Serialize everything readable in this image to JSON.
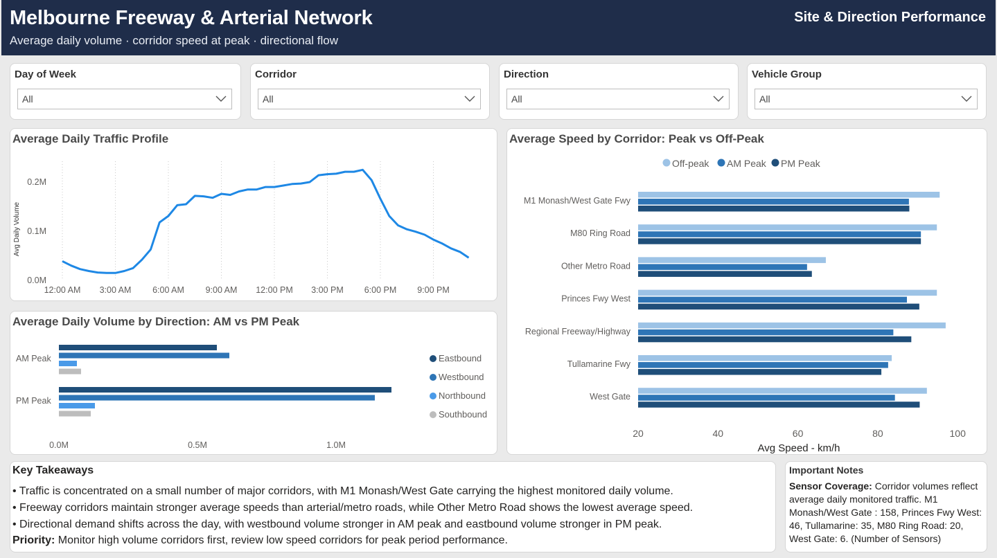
{
  "header": {
    "title": "Melbourne Freeway & Arterial Network",
    "subtitle": "Average daily volume · corridor speed at peak · directional flow",
    "page_name": "Site & Direction Performance"
  },
  "slicers": [
    {
      "label": "Day of Week",
      "value": "All"
    },
    {
      "label": "Corridor",
      "value": "All"
    },
    {
      "label": "Direction",
      "value": "All"
    },
    {
      "label": "Vehicle Group",
      "value": "All"
    }
  ],
  "colors": {
    "header_bg": "#1f2d4a",
    "line": "#1e88e5",
    "eastbound": "#1f4e79",
    "westbound": "#2e75b6",
    "northbound": "#4a9ae8",
    "southbound": "#bdbdbd",
    "offpeak": "#9dc3e6",
    "ampeak": "#2e75b6",
    "pmpeak": "#1f4e79"
  },
  "chart_data": [
    {
      "type": "line",
      "title": "Average Daily Traffic Profile",
      "ylabel": "Avg Daily Volume",
      "xlabel": "",
      "x_ticks": [
        "12:00 AM",
        "3:00 AM",
        "6:00 AM",
        "9:00 AM",
        "12:00 PM",
        "3:00 PM",
        "6:00 PM",
        "9:00 PM"
      ],
      "y_ticks": [
        "0.0M",
        "0.1M",
        "0.2M"
      ],
      "ylim": [
        0,
        0.24
      ],
      "x_hours": [
        0,
        0.5,
        1,
        1.5,
        2,
        2.5,
        3,
        3.5,
        4,
        4.5,
        5,
        5.5,
        6,
        6.5,
        7,
        7.5,
        8,
        8.5,
        9,
        9.5,
        10,
        10.5,
        11,
        11.5,
        12,
        12.5,
        13,
        13.5,
        14,
        14.5,
        15,
        15.5,
        16,
        16.5,
        17,
        17.5,
        18,
        18.5,
        19,
        19.5,
        20,
        20.5,
        21,
        21.5,
        22,
        22.5,
        23
      ],
      "values": [
        0.039,
        0.03,
        0.023,
        0.019,
        0.016,
        0.015,
        0.015,
        0.019,
        0.025,
        0.042,
        0.063,
        0.118,
        0.131,
        0.153,
        0.155,
        0.172,
        0.171,
        0.168,
        0.176,
        0.174,
        0.181,
        0.185,
        0.185,
        0.19,
        0.19,
        0.193,
        0.196,
        0.197,
        0.2,
        0.214,
        0.216,
        0.217,
        0.221,
        0.221,
        0.225,
        0.204,
        0.166,
        0.131,
        0.112,
        0.104,
        0.099,
        0.093,
        0.083,
        0.075,
        0.065,
        0.058,
        0.046
      ],
      "grid": "vertical dotted"
    },
    {
      "type": "bar",
      "orientation": "horizontal",
      "title": "Average Daily Volume by Direction: AM vs PM Peak",
      "categories": [
        "AM Peak",
        "PM Peak"
      ],
      "x_ticks": [
        "0.0M",
        "0.5M",
        "1.0M"
      ],
      "xlim": [
        0,
        1.25
      ],
      "legend_position": "right",
      "series": [
        {
          "name": "Eastbound",
          "values": [
            0.57,
            1.2
          ]
        },
        {
          "name": "Westbound",
          "values": [
            0.615,
            1.14
          ]
        },
        {
          "name": "Northbound",
          "values": [
            0.065,
            0.13
          ]
        },
        {
          "name": "Southbound",
          "values": [
            0.08,
            0.115
          ]
        }
      ]
    },
    {
      "type": "bar",
      "orientation": "horizontal",
      "title": "Average Speed by Corridor: Peak vs Off-Peak",
      "xlabel": "Avg Speed - km/h",
      "x_ticks": [
        "20",
        "40",
        "60",
        "80",
        "100"
      ],
      "xlim": [
        20,
        100
      ],
      "legend_position": "top",
      "categories": [
        "M1 Monash/West Gate Fwy",
        "M80 Ring Road",
        "Other Metro Road",
        "Princes Fwy West",
        "Regional Freeway/Highway",
        "Tullamarine Fwy",
        "West Gate"
      ],
      "series": [
        {
          "name": "Off-peak",
          "values": [
            95.5,
            94.8,
            67.0,
            94.8,
            97.0,
            83.5,
            92.3
          ]
        },
        {
          "name": "AM Peak",
          "values": [
            87.8,
            90.8,
            62.3,
            87.3,
            83.9,
            82.6,
            84.3
          ]
        },
        {
          "name": "PM Peak",
          "values": [
            87.9,
            90.8,
            63.5,
            90.4,
            88.4,
            80.9,
            90.5
          ]
        }
      ]
    }
  ],
  "takeaways": {
    "title": "Key Takeaways",
    "lines": [
      "• Traffic is concentrated on a small number of major corridors, with M1 Monash/West Gate carrying the highest monitored daily volume.",
      "• Freeway corridors maintain stronger average speeds than arterial/metro roads, while Other Metro Road shows the lowest average speed.",
      "• Directional demand shifts across the day, with westbound volume stronger in AM peak and eastbound volume stronger in PM peak."
    ],
    "priority_label": "Priority:",
    "priority_text": " Monitor high volume corridors first, review low speed corridors for peak period performance."
  },
  "notes": {
    "title": "Important Notes",
    "label": "Sensor Coverage:",
    "text": " Corridor volumes reflect average daily monitored traffic. M1 Monash/West Gate : 158, Princes Fwy West: 46, Tullamarine: 35, M80 Ring Road: 20, West Gate: 6. (Number of Sensors)"
  }
}
